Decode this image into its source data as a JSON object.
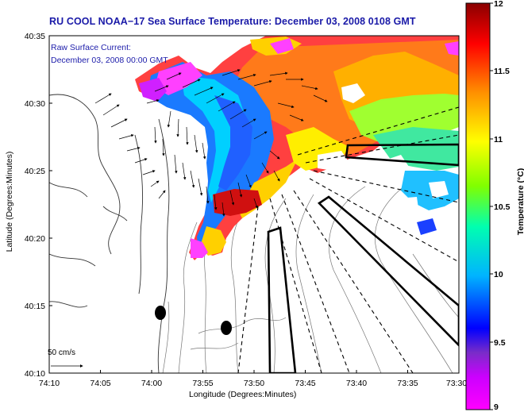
{
  "title": "RU COOL  NOAA−17  Sea Surface Temperature:  December 03, 2008 0108 GMT",
  "overlay": {
    "line1": "Raw Surface Current:",
    "line2": "December 03, 2008 00:00 GMT"
  },
  "axes": {
    "xlabel": "Longitude (Degrees:Minutes)",
    "ylabel": "Latitude (Degrees:Minutes)",
    "x_ticks": [
      "74:10",
      "74:05",
      "74:00",
      "73:55",
      "73:50",
      "73:45",
      "73:40",
      "73:35",
      "73:30"
    ],
    "y_ticks": [
      "40:35",
      "40:30",
      "40:25",
      "40:20",
      "40:15",
      "40:10"
    ]
  },
  "scale_label": "50 cm/s",
  "colorbar": {
    "label": "Temperature (°C)",
    "min": 9,
    "max": 12,
    "ticks": [
      "12",
      "11.5",
      "11",
      "10.5",
      "10",
      "9.5",
      "9"
    ],
    "tick_values": [
      12,
      11.5,
      11,
      10.5,
      10,
      9.5,
      9
    ],
    "colors": [
      "#ff00ff",
      "#7a2cc8",
      "#0000ff",
      "#00c8ff",
      "#00ff80",
      "#ffff00",
      "#ff8000",
      "#ff0000",
      "#800000"
    ]
  },
  "icons": {
    "vector": "arrow-icon"
  }
}
